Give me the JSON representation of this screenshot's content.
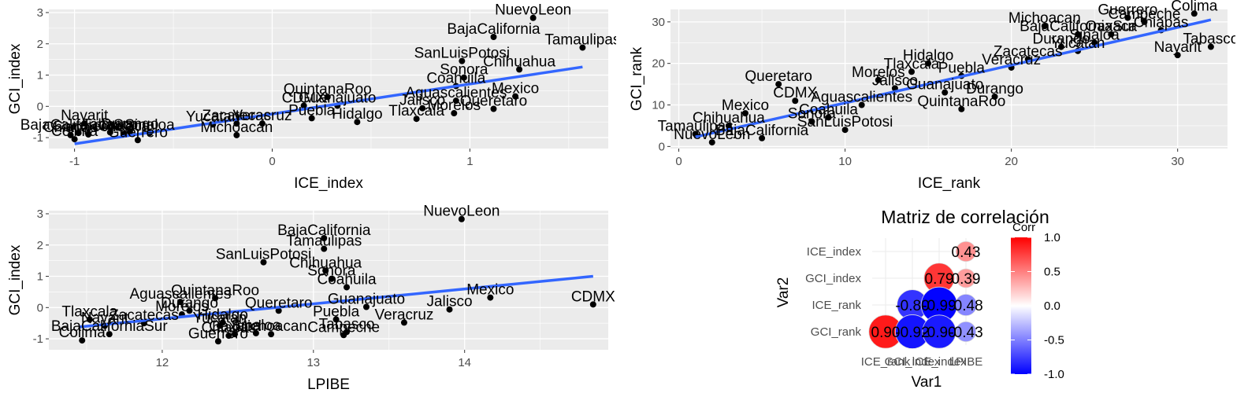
{
  "colors": {
    "panel_bg": "#ebebeb",
    "grid_major": "#ffffff",
    "fit_line": "#3366ff",
    "point": "#000000",
    "corr_high": "#ff0000",
    "corr_mid": "#ffffff",
    "corr_low": "#0000ff"
  },
  "chart_data": [
    {
      "type": "scatter",
      "title": "",
      "xlabel": "ICE_index",
      "ylabel": "GCI_index",
      "xlim": [
        -1.13,
        1.7
      ],
      "ylim": [
        -1.35,
        3.1
      ],
      "xticks": [
        -1,
        0,
        1
      ],
      "yticks": [
        -1,
        0,
        1,
        2,
        3
      ],
      "grid": true,
      "fit_line": {
        "x": [
          -1.0,
          1.57
        ],
        "y": [
          -1.2,
          1.26
        ]
      },
      "points": [
        {
          "label": "NuevoLeon",
          "x": 1.32,
          "y": 2.83
        },
        {
          "label": "BajaCalifornia",
          "x": 1.12,
          "y": 2.22
        },
        {
          "label": "Tamaulipas",
          "x": 1.57,
          "y": 1.88
        },
        {
          "label": "SanLuisPotosi",
          "x": 0.96,
          "y": 1.45
        },
        {
          "label": "Chihuahua",
          "x": 1.25,
          "y": 1.18
        },
        {
          "label": "Sonora",
          "x": 0.97,
          "y": 0.92
        },
        {
          "label": "Coahuila",
          "x": 0.93,
          "y": 0.65
        },
        {
          "label": "Mexico",
          "x": 1.23,
          "y": 0.32
        },
        {
          "label": "QuintanaRoo",
          "x": 0.28,
          "y": 0.3
        },
        {
          "label": "Aguascalientes",
          "x": 0.93,
          "y": 0.18
        },
        {
          "label": "CDMX",
          "x": 0.16,
          "y": 0.02
        },
        {
          "label": "Guanajuato",
          "x": 0.33,
          "y": 0.02
        },
        {
          "label": "Jalisco",
          "x": 0.76,
          "y": -0.06
        },
        {
          "label": "Queretaro",
          "x": 1.12,
          "y": -0.08
        },
        {
          "label": "Morelos",
          "x": 0.92,
          "y": -0.22
        },
        {
          "label": "Puebla",
          "x": 0.2,
          "y": -0.38
        },
        {
          "label": "Tlaxcala",
          "x": 0.73,
          "y": -0.4
        },
        {
          "label": "Hidalgo",
          "x": 0.43,
          "y": -0.5
        },
        {
          "label": "Zacatecas",
          "x": -0.18,
          "y": -0.55
        },
        {
          "label": "Veracruz",
          "x": -0.05,
          "y": -0.55
        },
        {
          "label": "Yucatan",
          "x": -0.3,
          "y": -0.58
        },
        {
          "label": "Nayarit",
          "x": -0.95,
          "y": -0.55
        },
        {
          "label": "Durango",
          "x": -0.72,
          "y": -0.82
        },
        {
          "label": "Sinaloa",
          "x": -0.62,
          "y": -0.85
        },
        {
          "label": "Oaxaca",
          "x": -0.75,
          "y": -0.88
        },
        {
          "label": "Tabasco",
          "x": -0.82,
          "y": -0.83
        },
        {
          "label": "BajaCaliforniaSur",
          "x": -0.98,
          "y": -0.85
        },
        {
          "label": "Campeche",
          "x": -0.93,
          "y": -0.9
        },
        {
          "label": "Michoacan",
          "x": -0.18,
          "y": -0.92
        },
        {
          "label": "Chiapas",
          "x": -1.02,
          "y": -0.92
        },
        {
          "label": "Colima",
          "x": -1.0,
          "y": -1.05
        },
        {
          "label": "Guerrero",
          "x": -0.68,
          "y": -1.08
        }
      ]
    },
    {
      "type": "scatter",
      "title": "",
      "xlabel": "ICE_rank",
      "ylabel": "GCI_rank",
      "xlim": [
        -0.5,
        33
      ],
      "ylim": [
        -0.5,
        33
      ],
      "xticks": [
        0,
        10,
        20,
        30
      ],
      "yticks": [
        0,
        10,
        20,
        30
      ],
      "grid": true,
      "fit_line": {
        "x": [
          1,
          32
        ],
        "y": [
          2.3,
          30.5
        ]
      },
      "points": [
        {
          "label": "Colima",
          "x": 31,
          "y": 32
        },
        {
          "label": "Guerrero",
          "x": 27,
          "y": 31
        },
        {
          "label": "Campeche",
          "x": 28,
          "y": 30
        },
        {
          "label": "Michoacan",
          "x": 22,
          "y": 29
        },
        {
          "label": "Chiapas",
          "x": 29,
          "y": 28
        },
        {
          "label": "BajaCaliforniaSur",
          "x": 24,
          "y": 27
        },
        {
          "label": "Oaxaca",
          "x": 26,
          "y": 27
        },
        {
          "label": "Sinaloa",
          "x": 25,
          "y": 25
        },
        {
          "label": "Durango",
          "x": 23,
          "y": 24
        },
        {
          "label": "Tabasco",
          "x": 32,
          "y": 24
        },
        {
          "label": "Yucatan",
          "x": 24,
          "y": 23
        },
        {
          "label": "Nayarit",
          "x": 30,
          "y": 22
        },
        {
          "label": "Zacatecas",
          "x": 21,
          "y": 21
        },
        {
          "label": "Hidalgo",
          "x": 15,
          "y": 20
        },
        {
          "label": "Veracruz",
          "x": 20,
          "y": 19
        },
        {
          "label": "Tlaxcala",
          "x": 14,
          "y": 18
        },
        {
          "label": "Puebla",
          "x": 17,
          "y": 17
        },
        {
          "label": "Morelos",
          "x": 12,
          "y": 16
        },
        {
          "label": "Queretaro",
          "x": 6,
          "y": 15
        },
        {
          "label": "Jalisco",
          "x": 13,
          "y": 14
        },
        {
          "label": "Guanajuato",
          "x": 16,
          "y": 13
        },
        {
          "label": "Durango",
          "x": 19,
          "y": 12
        },
        {
          "label": "CDMX",
          "x": 7,
          "y": 11
        },
        {
          "label": "Aguascalientes",
          "x": 11,
          "y": 10
        },
        {
          "label": "QuintanaRoo",
          "x": 17,
          "y": 9
        },
        {
          "label": "Mexico",
          "x": 4,
          "y": 8
        },
        {
          "label": "Coahuila",
          "x": 9,
          "y": 7
        },
        {
          "label": "Sonora",
          "x": 8,
          "y": 6
        },
        {
          "label": "Chihuahua",
          "x": 3,
          "y": 5
        },
        {
          "label": "SanLuisPotosi",
          "x": 10,
          "y": 4
        },
        {
          "label": "Tamaulipas",
          "x": 1,
          "y": 3
        },
        {
          "label": "BajaCalifornia",
          "x": 5,
          "y": 2
        },
        {
          "label": "NuevoLeon",
          "x": 2,
          "y": 1
        }
      ]
    },
    {
      "type": "scatter",
      "title": "",
      "xlabel": "LPIBE",
      "ylabel": "GCI_index",
      "xlim": [
        11.25,
        14.95
      ],
      "ylim": [
        -1.35,
        3.1
      ],
      "xticks": [
        12,
        13,
        14
      ],
      "yticks": [
        -1,
        0,
        1,
        2,
        3
      ],
      "grid": true,
      "fit_line": {
        "x": [
          11.45,
          14.85
        ],
        "y": [
          -0.62,
          1.0
        ]
      },
      "points": [
        {
          "label": "NuevoLeon",
          "x": 13.98,
          "y": 2.83
        },
        {
          "label": "BajaCalifornia",
          "x": 13.07,
          "y": 2.22
        },
        {
          "label": "Tamaulipas",
          "x": 13.07,
          "y": 1.88
        },
        {
          "label": "SanLuisPotosi",
          "x": 12.67,
          "y": 1.45
        },
        {
          "label": "Chihuahua",
          "x": 13.08,
          "y": 1.18
        },
        {
          "label": "Sonora",
          "x": 13.12,
          "y": 0.92
        },
        {
          "label": "Coahuila",
          "x": 13.22,
          "y": 0.65
        },
        {
          "label": "Mexico",
          "x": 14.17,
          "y": 0.32
        },
        {
          "label": "QuintanaRoo",
          "x": 12.35,
          "y": 0.3
        },
        {
          "label": "Aguascalientes",
          "x": 12.12,
          "y": 0.18
        },
        {
          "label": "CDMX",
          "x": 14.85,
          "y": 0.1
        },
        {
          "label": "Guanajuato",
          "x": 13.35,
          "y": 0.02
        },
        {
          "label": "Jalisco",
          "x": 13.9,
          "y": -0.06
        },
        {
          "label": "Queretaro",
          "x": 12.77,
          "y": -0.1
        },
        {
          "label": "Durango",
          "x": 12.18,
          "y": -0.1
        },
        {
          "label": "Morelos",
          "x": 12.13,
          "y": -0.22
        },
        {
          "label": "Puebla",
          "x": 13.15,
          "y": -0.38
        },
        {
          "label": "Tlaxcala",
          "x": 11.52,
          "y": -0.38
        },
        {
          "label": "Veracruz",
          "x": 13.6,
          "y": -0.48
        },
        {
          "label": "Zacatecas",
          "x": 11.88,
          "y": -0.5
        },
        {
          "label": "Hidalgo",
          "x": 12.4,
          "y": -0.48
        },
        {
          "label": "Yucatan",
          "x": 12.38,
          "y": -0.58
        },
        {
          "label": "Nayarit",
          "x": 11.62,
          "y": -0.58
        },
        {
          "label": "Tabasco",
          "x": 13.22,
          "y": -0.78
        },
        {
          "label": "Sinaloa",
          "x": 12.62,
          "y": -0.82
        },
        {
          "label": "Oaxaca",
          "x": 12.48,
          "y": -0.85
        },
        {
          "label": "Chiapas",
          "x": 12.44,
          "y": -0.9
        },
        {
          "label": "Michoacan",
          "x": 12.72,
          "y": -0.85
        },
        {
          "label": "Campeche",
          "x": 13.2,
          "y": -0.88
        },
        {
          "label": "BajaCaliforniaSur",
          "x": 11.65,
          "y": -0.85
        },
        {
          "label": "Guerrero",
          "x": 12.37,
          "y": -1.08
        },
        {
          "label": "Colima",
          "x": 11.47,
          "y": -1.05
        }
      ]
    },
    {
      "type": "heatmap",
      "title": "Matriz de correlación",
      "xlabel": "Var1",
      "ylabel": "Var2",
      "variables": [
        "GCI_rank",
        "ICE_rank",
        "GCI_index",
        "ICE_index",
        "LPIBE"
      ],
      "x_tick_labels": [
        "ICE_rank",
        "GCI_index",
        "ICE_index",
        "LPIBE"
      ],
      "y_tick_labels": [
        "ICE_index",
        "GCI_index",
        "ICE_rank",
        "GCI_rank"
      ],
      "legend_title": "Corr",
      "legend_ticks": [
        1.0,
        0.5,
        0.0,
        -0.5,
        -1.0
      ],
      "legend_tick_labels": [
        "1.0",
        "0.5",
        "0.0",
        "-0.5",
        "-1.0"
      ],
      "cells": [
        {
          "row": "ICE_index",
          "col": "LPIBE",
          "value": 0.43,
          "label": "0.43"
        },
        {
          "row": "GCI_index",
          "col": "ICE_index",
          "value": 0.79,
          "label": "0.79"
        },
        {
          "row": "GCI_index",
          "col": "LPIBE",
          "value": 0.39,
          "label": "0.39"
        },
        {
          "row": "ICE_rank",
          "col": "GCI_index",
          "value": -0.8,
          "label": "-0.80"
        },
        {
          "row": "ICE_rank",
          "col": "ICE_index",
          "value": -0.99,
          "label": "-0.99"
        },
        {
          "row": "ICE_rank",
          "col": "LPIBE",
          "value": -0.48,
          "label": "-0.48"
        },
        {
          "row": "GCI_rank",
          "col": "ICE_rank",
          "value": 0.9,
          "label": "0.90"
        },
        {
          "row": "GCI_rank",
          "col": "GCI_index",
          "value": -0.92,
          "label": "-0.92"
        },
        {
          "row": "GCI_rank",
          "col": "ICE_index",
          "value": -0.9,
          "label": "-0.90"
        },
        {
          "row": "GCI_rank",
          "col": "LPIBE",
          "value": -0.43,
          "label": "-0.43"
        }
      ]
    }
  ]
}
